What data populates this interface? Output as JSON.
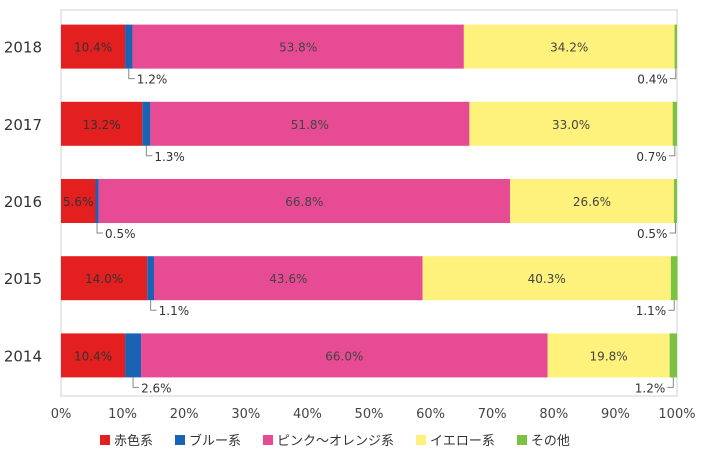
{
  "chart_data": {
    "type": "bar",
    "orientation": "horizontal",
    "stacked": true,
    "percent": true,
    "categories": [
      "2018",
      "2017",
      "2016",
      "2015",
      "2014"
    ],
    "series": [
      {
        "name": "赤色系",
        "color": "#e41f1f",
        "values": [
          10.4,
          13.2,
          5.6,
          14.0,
          10.4
        ],
        "labels": [
          "10.4%",
          "13.2%",
          "5.6%",
          "14.0%",
          "10.4%"
        ]
      },
      {
        "name": "ブルー系",
        "color": "#1a63b4",
        "values": [
          1.2,
          1.3,
          0.5,
          1.1,
          2.6
        ],
        "labels": [
          "1.2%",
          "1.3%",
          "0.5%",
          "1.1%",
          "2.6%"
        ]
      },
      {
        "name": "ピンク〜オレンジ系",
        "color": "#e64b93",
        "values": [
          53.8,
          51.8,
          66.8,
          43.6,
          66.0
        ],
        "labels": [
          "53.8%",
          "51.8%",
          "66.8%",
          "43.6%",
          "66.0%"
        ]
      },
      {
        "name": "イエロー系",
        "color": "#fff27c",
        "values": [
          34.2,
          33.0,
          26.6,
          40.3,
          19.8
        ],
        "labels": [
          "34.2%",
          "33.0%",
          "26.6%",
          "40.3%",
          "19.8%"
        ]
      },
      {
        "name": "その他",
        "color": "#7cc242",
        "values": [
          0.4,
          0.7,
          0.5,
          1.1,
          1.2
        ],
        "labels": [
          "0.4%",
          "0.7%",
          "0.5%",
          "1.1%",
          "1.2%"
        ]
      }
    ],
    "xlim": [
      0,
      100
    ],
    "xticks": [
      "0%",
      "10%",
      "20%",
      "30%",
      "40%",
      "50%",
      "60%",
      "70%",
      "80%",
      "90%",
      "100%"
    ],
    "legend_position": "bottom",
    "grid": false
  }
}
